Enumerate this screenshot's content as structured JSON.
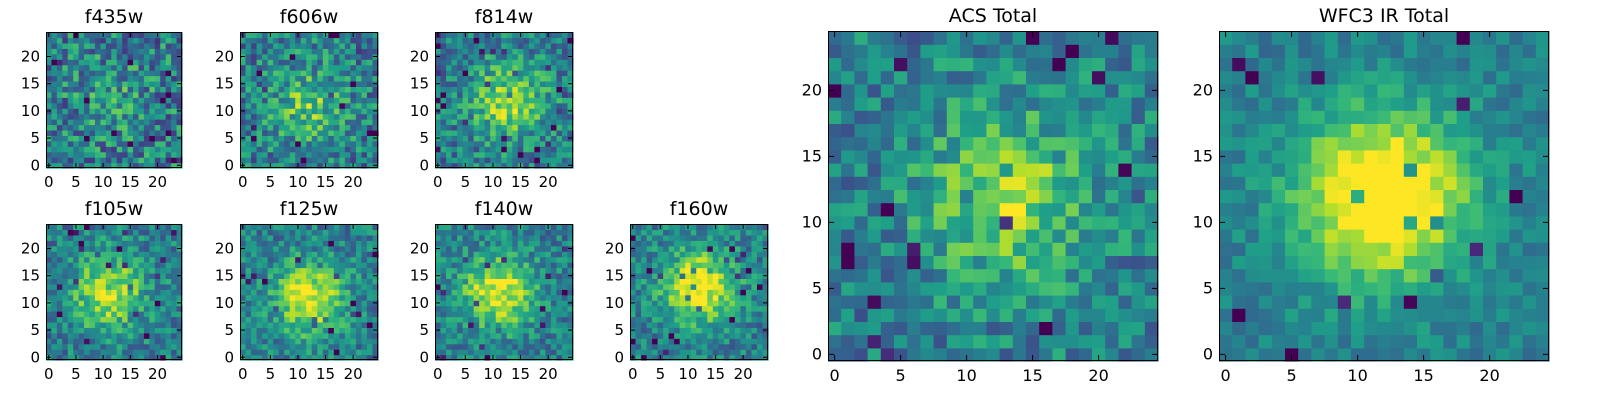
{
  "chart_data": [
    {
      "type": "heatmap",
      "title": "f435w",
      "grid_size": 25,
      "xlim": [
        -0.5,
        24.5
      ],
      "ylim": [
        -0.5,
        24.5
      ],
      "xticks": [
        "0",
        "5",
        "10",
        "15",
        "20"
      ],
      "yticks": [
        "0",
        "5",
        "10",
        "15",
        "20"
      ],
      "peak_center": [
        12,
        12
      ],
      "peak_strength": 0.12,
      "noise_level": 0.55,
      "colormap": "viridis"
    },
    {
      "type": "heatmap",
      "title": "f606w",
      "grid_size": 25,
      "xlim": [
        -0.5,
        24.5
      ],
      "ylim": [
        -0.5,
        24.5
      ],
      "xticks": [
        "0",
        "5",
        "10",
        "15",
        "20"
      ],
      "yticks": [
        "0",
        "5",
        "10",
        "15",
        "20"
      ],
      "peak_center": [
        12,
        11
      ],
      "peak_strength": 0.3,
      "noise_level": 0.5,
      "colormap": "viridis"
    },
    {
      "type": "heatmap",
      "title": "f814w",
      "grid_size": 25,
      "xlim": [
        -0.5,
        24.5
      ],
      "ylim": [
        -0.5,
        24.5
      ],
      "xticks": [
        "0",
        "5",
        "10",
        "15",
        "20"
      ],
      "yticks": [
        "0",
        "5",
        "10",
        "15",
        "20"
      ],
      "peak_center": [
        13,
        12
      ],
      "peak_strength": 0.45,
      "noise_level": 0.45,
      "colormap": "viridis"
    },
    {
      "type": "heatmap",
      "title": "f105w",
      "grid_size": 25,
      "xlim": [
        -0.5,
        24.5
      ],
      "ylim": [
        -0.5,
        24.5
      ],
      "xticks": [
        "0",
        "5",
        "10",
        "15",
        "20"
      ],
      "yticks": [
        "0",
        "5",
        "10",
        "15",
        "20"
      ],
      "peak_center": [
        11,
        12
      ],
      "peak_strength": 0.5,
      "noise_level": 0.4,
      "colormap": "viridis"
    },
    {
      "type": "heatmap",
      "title": "f125w",
      "grid_size": 25,
      "xlim": [
        -0.5,
        24.5
      ],
      "ylim": [
        -0.5,
        24.5
      ],
      "xticks": [
        "0",
        "5",
        "10",
        "15",
        "20"
      ],
      "yticks": [
        "0",
        "5",
        "10",
        "15",
        "20"
      ],
      "peak_center": [
        12,
        11
      ],
      "peak_strength": 0.55,
      "noise_level": 0.38,
      "colormap": "viridis"
    },
    {
      "type": "heatmap",
      "title": "f140w",
      "grid_size": 25,
      "xlim": [
        -0.5,
        24.5
      ],
      "ylim": [
        -0.5,
        24.5
      ],
      "xticks": [
        "0",
        "5",
        "10",
        "15",
        "20"
      ],
      "yticks": [
        "0",
        "5",
        "10",
        "15",
        "20"
      ],
      "peak_center": [
        11,
        12
      ],
      "peak_strength": 0.55,
      "noise_level": 0.38,
      "colormap": "viridis"
    },
    {
      "type": "heatmap",
      "title": "f160w",
      "grid_size": 25,
      "xlim": [
        -0.5,
        24.5
      ],
      "ylim": [
        -0.5,
        24.5
      ],
      "xticks": [
        "0",
        "5",
        "10",
        "15",
        "20"
      ],
      "yticks": [
        "0",
        "5",
        "10",
        "15",
        "20"
      ],
      "peak_center": [
        12,
        13
      ],
      "peak_strength": 0.6,
      "noise_level": 0.38,
      "colormap": "viridis"
    },
    {
      "type": "heatmap",
      "title": "ACS Total",
      "grid_size": 25,
      "xlim": [
        -0.5,
        24.5
      ],
      "ylim": [
        -0.5,
        24.5
      ],
      "xticks": [
        "0",
        "5",
        "10",
        "15",
        "20"
      ],
      "yticks": [
        "0",
        "5",
        "10",
        "15",
        "20"
      ],
      "peak_center": [
        13,
        12
      ],
      "peak_strength": 0.4,
      "noise_level": 0.4,
      "colormap": "viridis"
    },
    {
      "type": "heatmap",
      "title": "WFC3 IR Total",
      "grid_size": 25,
      "xlim": [
        -0.5,
        24.5
      ],
      "ylim": [
        -0.5,
        24.5
      ],
      "xticks": [
        "0",
        "5",
        "10",
        "15",
        "20"
      ],
      "yticks": [
        "0",
        "5",
        "10",
        "15",
        "20"
      ],
      "peak_center": [
        12,
        12
      ],
      "peak_strength": 0.75,
      "noise_level": 0.22,
      "colormap": "viridis"
    }
  ]
}
